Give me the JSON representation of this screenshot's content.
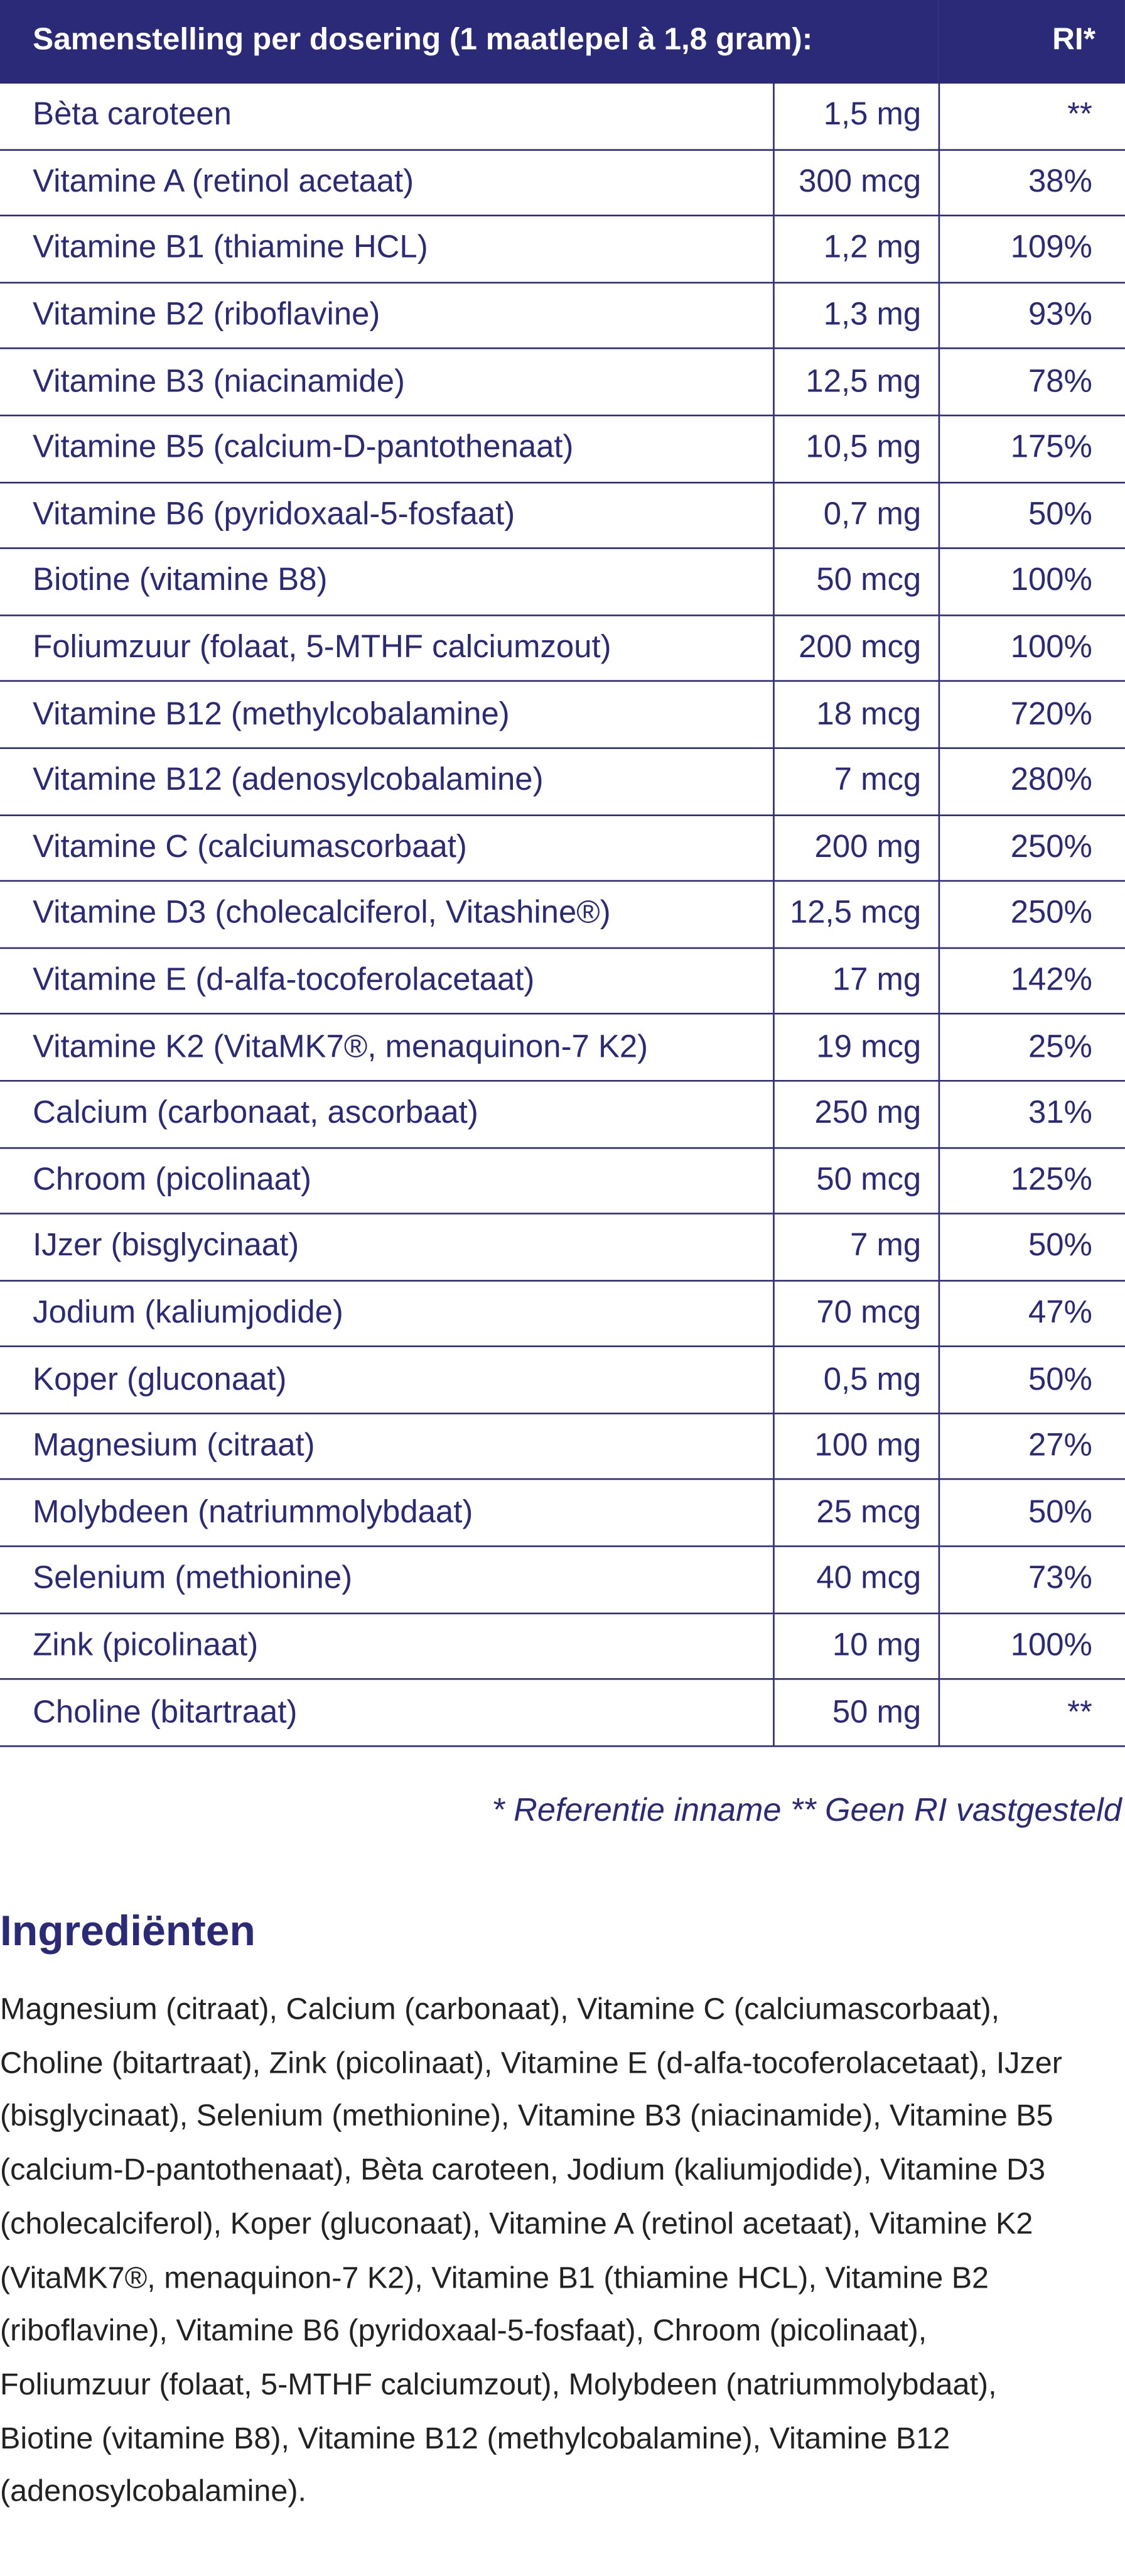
{
  "table": {
    "header": [
      "Samenstelling per dosering (1 maatlepel à 1,8 gram):",
      "RI*"
    ],
    "rows": [
      [
        "Bèta caroteen",
        "1,5 mg",
        "**"
      ],
      [
        "Vitamine A (retinol acetaat)",
        "300 mcg",
        "38%"
      ],
      [
        "Vitamine B1 (thiamine HCL)",
        "1,2 mg",
        "109%"
      ],
      [
        "Vitamine B2 (riboflavine)",
        "1,3 mg",
        "93%"
      ],
      [
        "Vitamine B3 (niacinamide)",
        "12,5 mg",
        "78%"
      ],
      [
        "Vitamine B5 (calcium-D-pantothenaat)",
        "10,5 mg",
        "175%"
      ],
      [
        "Vitamine B6 (pyridoxaal-5-fosfaat)",
        "0,7 mg",
        "50%"
      ],
      [
        "Biotine (vitamine B8)",
        "50 mcg",
        "100%"
      ],
      [
        "Foliumzuur (folaat, 5-MTHF calciumzout)",
        "200 mcg",
        "100%"
      ],
      [
        "Vitamine B12 (methylcobalamine)",
        "18 mcg",
        "720%"
      ],
      [
        "Vitamine B12 (adenosylcobalamine)",
        "7 mcg",
        "280%"
      ],
      [
        "Vitamine C (calciumascorbaat)",
        "200 mg",
        "250%"
      ],
      [
        "Vitamine D3 (cholecalciferol, Vitashine®)",
        "12,5 mcg",
        "250%"
      ],
      [
        "Vitamine E (d-alfa-tocoferolacetaat)",
        "17 mg",
        "142%"
      ],
      [
        "Vitamine K2 (VitaMK7®, menaquinon-7 K2)",
        "19 mcg",
        "25%"
      ],
      [
        "Calcium (carbonaat, ascorbaat)",
        "250 mg",
        "31%"
      ],
      [
        "Chroom (picolinaat)",
        "50 mcg",
        "125%"
      ],
      [
        "IJzer (bisglycinaat)",
        "7 mg",
        "50%"
      ],
      [
        "Jodium (kaliumjodide)",
        "70 mcg",
        "47%"
      ],
      [
        "Koper (gluconaat)",
        "0,5 mg",
        "50%"
      ],
      [
        "Magnesium (citraat)",
        "100 mg",
        "27%"
      ],
      [
        "Molybdeen (natriummolybdaat)",
        "25 mcg",
        "50%"
      ],
      [
        "Selenium (methionine)",
        "40 mcg",
        "73%"
      ],
      [
        "Zink (picolinaat)",
        "10 mg",
        "100%"
      ],
      [
        "Choline (bitartraat)",
        "50 mg",
        "**"
      ]
    ]
  },
  "footnote": "* Referentie inname  ** Geen RI vastgesteld",
  "ingredients": {
    "title": "Ingrediënten",
    "text": "Magnesium (citraat), Calcium (carbonaat), Vitamine C (calciumascorbaat), Choline (bitartraat), Zink (picolinaat), Vitamine E (d-alfa-tocoferolacetaat), IJzer (bisglycinaat), Selenium (methionine), Vitamine B3 (niacinamide), Vitamine B5 (calcium-D-pantothenaat), Bèta caroteen, Jodium (kaliumjodide), Vitamine D3 (cholecalciferol), Koper (gluconaat), Vitamine A (retinol acetaat), Vitamine K2 (VitaMK7®, menaquinon-7 K2), Vitamine B1 (thiamine HCL), Vitamine B2 (riboflavine), Vitamine B6 (pyridoxaal-5-fosfaat), Chroom (picolinaat), Foliumzuur (folaat, 5-MTHF calciumzout), Molybdeen (natriummolybdaat), Biotine (vitamine B8), Vitamine B12 (methylcobalamine), Vitamine B12 (adenosylcobalamine)."
  }
}
